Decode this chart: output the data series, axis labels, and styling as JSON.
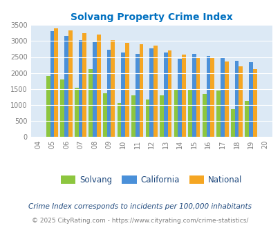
{
  "title": "Solvang Property Crime Index",
  "years": [
    2004,
    2005,
    2006,
    2007,
    2008,
    2009,
    2010,
    2011,
    2012,
    2013,
    2014,
    2015,
    2016,
    2017,
    2018,
    2019,
    2020
  ],
  "solvang": [
    null,
    1900,
    1800,
    1530,
    2120,
    1360,
    1060,
    1305,
    1170,
    1305,
    1490,
    1470,
    1350,
    1450,
    870,
    1130,
    null
  ],
  "california": [
    null,
    3320,
    3150,
    3030,
    2960,
    2730,
    2640,
    2590,
    2770,
    2650,
    2450,
    2590,
    2540,
    2490,
    2390,
    2340,
    null
  ],
  "national": [
    null,
    3390,
    3330,
    3250,
    3200,
    3040,
    2950,
    2900,
    2860,
    2700,
    2580,
    2490,
    2460,
    2360,
    2200,
    2120,
    null
  ],
  "colors": {
    "solvang": "#8DC63F",
    "california": "#4A90D9",
    "national": "#F5A623"
  },
  "ylim": [
    0,
    3500
  ],
  "yticks": [
    0,
    500,
    1000,
    1500,
    2000,
    2500,
    3000,
    3500
  ],
  "bg_color": "#dce9f5",
  "footnote1": "Crime Index corresponds to incidents per 100,000 inhabitants",
  "footnote2": "© 2025 CityRating.com - https://www.cityrating.com/crime-statistics/",
  "title_color": "#0070C0",
  "footnote1_color": "#1F497D",
  "footnote2_color": "#808080",
  "legend_text_color": "#1F497D",
  "tick_color": "#808080",
  "url_color": "#4472C4"
}
